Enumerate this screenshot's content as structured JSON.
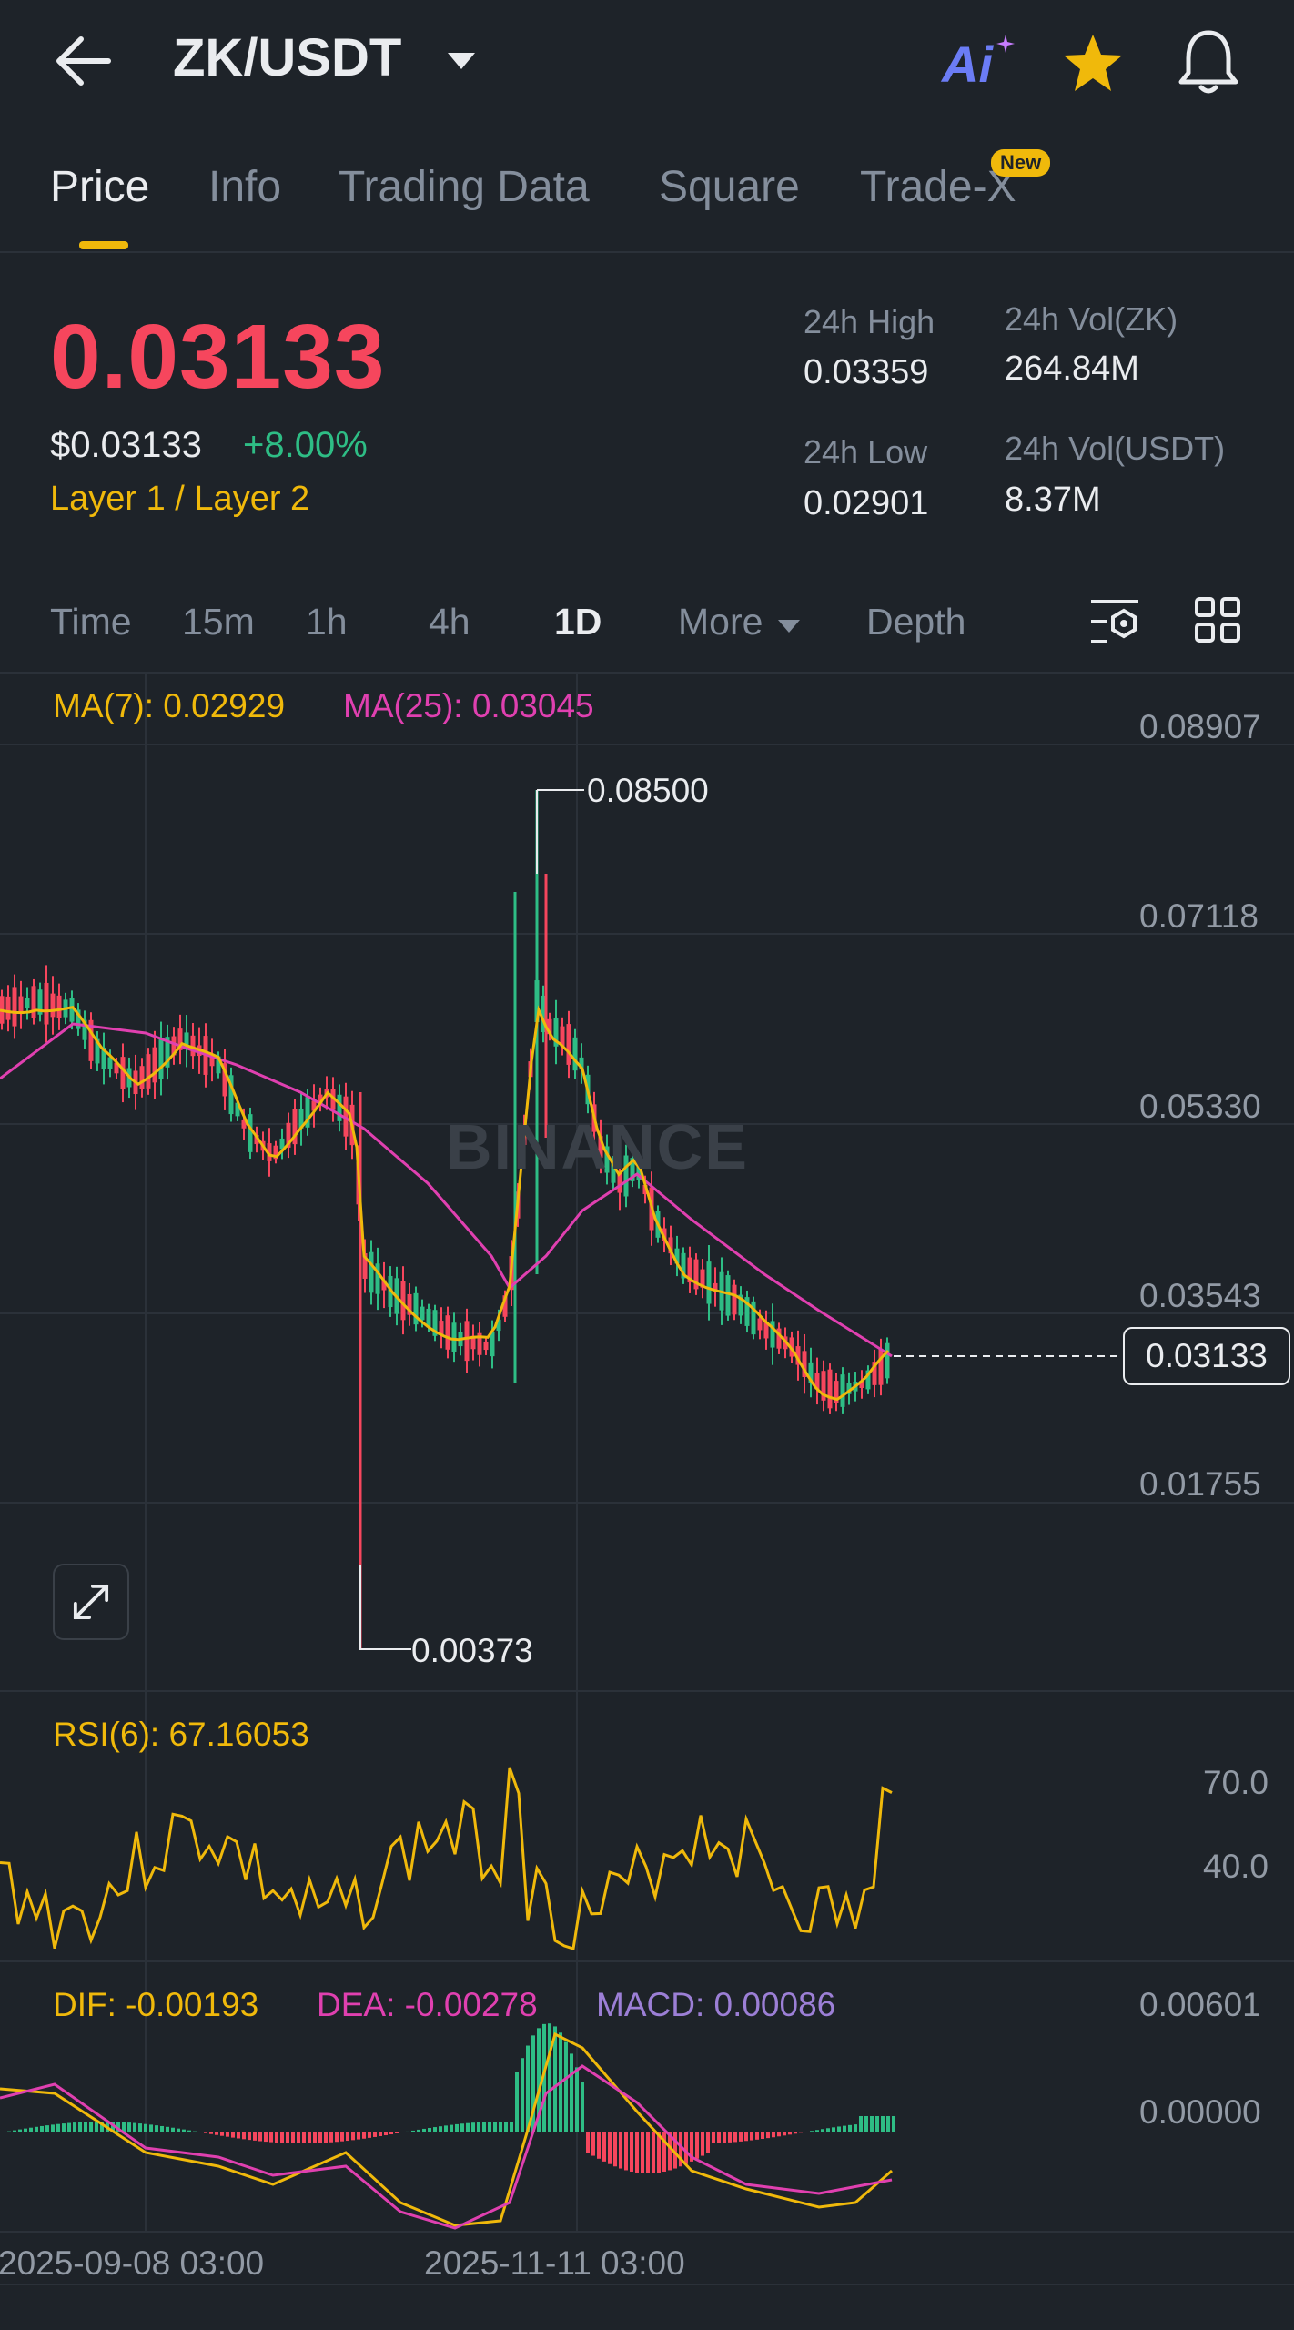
{
  "header": {
    "pair": "ZK/USDT",
    "ai_label": "Ai"
  },
  "tabs": [
    {
      "label": "Price"
    },
    {
      "label": "Info"
    },
    {
      "label": "Trading Data"
    },
    {
      "label": "Square"
    },
    {
      "label": "Trade-X"
    }
  ],
  "new_badge": "New",
  "price": {
    "last": "0.03133",
    "usd": "$0.03133",
    "change": "+8.00%",
    "tag": "Layer 1 / Layer 2"
  },
  "stats": {
    "high_label": "24h High",
    "high_value": "0.03359",
    "low_label": "24h Low",
    "low_value": "0.02901",
    "vol_zk_label": "24h Vol(ZK)",
    "vol_zk_value": "264.84M",
    "vol_usdt_label": "24h Vol(USDT)",
    "vol_usdt_value": "8.37M"
  },
  "timeframes": [
    {
      "label": "Time"
    },
    {
      "label": "15m"
    },
    {
      "label": "1h"
    },
    {
      "label": "4h"
    },
    {
      "label": "1D"
    },
    {
      "label": "More"
    },
    {
      "label": "Depth"
    }
  ],
  "indicators": {
    "ma7": "MA(7): 0.02929",
    "ma25": "MA(25): 0.03045",
    "rsi": "RSI(6): 67.16053",
    "dif": "DIF: -0.00193",
    "dea": "DEA: -0.00278",
    "macd": "MACD: 0.00086"
  },
  "price_axis": [
    "0.08907",
    "0.07118",
    "0.05330",
    "0.03543",
    "0.01755"
  ],
  "rsi_axis": [
    "70.0",
    "40.0"
  ],
  "macd_axis": [
    "0.00601",
    "0.00000"
  ],
  "high_marker": "0.08500",
  "low_marker": "0.00373",
  "last_price_tag": "0.03133",
  "watermark": "BINANCE",
  "date_axis": [
    "2025-09-08 03:00",
    "2025-11-11 03:00"
  ],
  "colors": {
    "up": "#2ebd85",
    "down": "#f6465d",
    "ma7": "#f0b90b",
    "ma25": "#e040b0",
    "macd_label": "#9c7fd6",
    "accent": "#f0b90b"
  }
}
